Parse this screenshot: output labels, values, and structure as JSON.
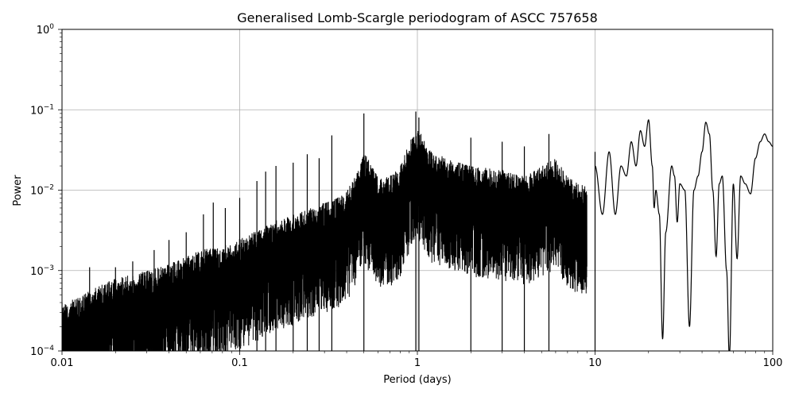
{
  "chart_data": {
    "type": "line",
    "title": "Generalised Lomb-Scargle periodogram of ASCC 757658",
    "xlabel": "Period (days)",
    "ylabel": "Power",
    "xscale": "log",
    "yscale": "log",
    "xlim": [
      0.01,
      100
    ],
    "ylim": [
      0.0001,
      1
    ],
    "grid": true,
    "line_color": "#000000",
    "x_ticks": [
      {
        "value": 0.01,
        "label": "0.01"
      },
      {
        "value": 0.1,
        "label": "0.1"
      },
      {
        "value": 1,
        "label": "1"
      },
      {
        "value": 10,
        "label": "10"
      },
      {
        "value": 100,
        "label": "100"
      }
    ],
    "y_ticks": [
      {
        "value": 0.0001,
        "base": "10",
        "exp": "−4"
      },
      {
        "value": 0.001,
        "base": "10",
        "exp": "−3"
      },
      {
        "value": 0.01,
        "base": "10",
        "exp": "−2"
      },
      {
        "value": 0.1,
        "base": "10",
        "exp": "−1"
      },
      {
        "value": 1,
        "base": "10",
        "exp": "0"
      }
    ],
    "envelope": {
      "description_values": "upper envelope of periodogram power vs period (days)",
      "x": [
        0.01,
        0.012,
        0.015,
        0.02,
        0.025,
        0.03,
        0.04,
        0.05,
        0.06,
        0.08,
        0.1,
        0.12,
        0.15,
        0.2,
        0.25,
        0.3,
        0.35,
        0.4,
        0.45,
        0.5,
        0.6,
        0.7,
        0.8,
        0.9,
        1.0,
        1.2,
        1.5,
        2.0,
        3.0,
        4.0,
        5.0,
        6.0,
        7.0,
        8.0,
        9.0
      ],
      "y": [
        0.0004,
        0.00045,
        0.0006,
        0.0008,
        0.0009,
        0.001,
        0.0012,
        0.0015,
        0.0018,
        0.002,
        0.0025,
        0.003,
        0.004,
        0.005,
        0.006,
        0.007,
        0.008,
        0.01,
        0.015,
        0.03,
        0.015,
        0.015,
        0.02,
        0.04,
        0.06,
        0.03,
        0.025,
        0.02,
        0.018,
        0.015,
        0.02,
        0.025,
        0.015,
        0.012,
        0.012
      ]
    },
    "peaks": [
      {
        "x": 0.5,
        "y": 0.09
      },
      {
        "x": 0.98,
        "y": 0.095
      },
      {
        "x": 1.02,
        "y": 0.08
      },
      {
        "x": 0.33,
        "y": 0.048
      },
      {
        "x": 0.28,
        "y": 0.025
      },
      {
        "x": 0.24,
        "y": 0.028
      },
      {
        "x": 0.2,
        "y": 0.022
      },
      {
        "x": 0.16,
        "y": 0.02
      },
      {
        "x": 0.14,
        "y": 0.017
      },
      {
        "x": 0.125,
        "y": 0.013
      },
      {
        "x": 0.1,
        "y": 0.008
      },
      {
        "x": 0.083,
        "y": 0.006
      },
      {
        "x": 0.071,
        "y": 0.007
      },
      {
        "x": 0.0625,
        "y": 0.005
      },
      {
        "x": 0.05,
        "y": 0.003
      },
      {
        "x": 0.04,
        "y": 0.0024
      },
      {
        "x": 0.033,
        "y": 0.0018
      },
      {
        "x": 0.025,
        "y": 0.0013
      },
      {
        "x": 0.02,
        "y": 0.0011
      },
      {
        "x": 0.0143,
        "y": 0.0011
      },
      {
        "x": 0.01,
        "y": 0.0004
      },
      {
        "x": 2.0,
        "y": 0.045
      },
      {
        "x": 3.0,
        "y": 0.04
      },
      {
        "x": 4.0,
        "y": 0.035
      },
      {
        "x": 5.5,
        "y": 0.05
      },
      {
        "x": 10.0,
        "y": 0.03
      }
    ],
    "long_period_curve": {
      "x": [
        10,
        11,
        12,
        13,
        14,
        15,
        16,
        17,
        18,
        19,
        20,
        21,
        21.5,
        22,
        23,
        24,
        25,
        27,
        28,
        29,
        30,
        32,
        34,
        36,
        38,
        40,
        42,
        44,
        46,
        48,
        50,
        52,
        55,
        57,
        60,
        63,
        66,
        70,
        75,
        80,
        85,
        90,
        95,
        100
      ],
      "y": [
        0.02,
        0.005,
        0.03,
        0.005,
        0.02,
        0.015,
        0.04,
        0.02,
        0.055,
        0.035,
        0.075,
        0.02,
        0.006,
        0.01,
        0.005,
        0.00014,
        0.003,
        0.02,
        0.015,
        0.004,
        0.012,
        0.01,
        0.0002,
        0.01,
        0.015,
        0.03,
        0.07,
        0.05,
        0.01,
        0.0015,
        0.012,
        0.015,
        0.001,
        8e-05,
        0.012,
        0.0014,
        0.015,
        0.012,
        0.009,
        0.025,
        0.04,
        0.05,
        0.04,
        0.035
      ]
    }
  }
}
